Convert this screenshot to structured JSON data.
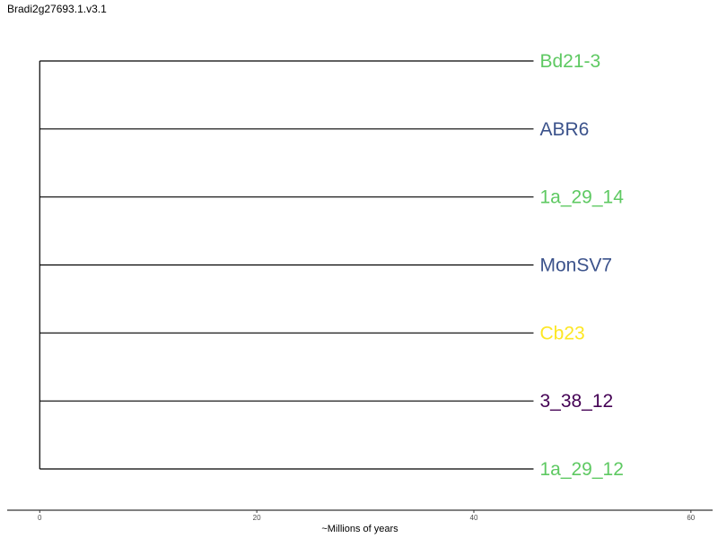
{
  "page": {
    "title": "Bradi2g27693.1.v3.1"
  },
  "chart_data": {
    "type": "dendrogram",
    "title": "Bradi2g27693.1.v3.1",
    "xlabel": "~Millions of years",
    "ylabel": "",
    "xlim": [
      -3,
      62
    ],
    "x_ticks": [
      0,
      20,
      40,
      60
    ],
    "grid": false,
    "root_age": 0,
    "tip_age": 45.5,
    "leaves": [
      {
        "label": "Bd21-3",
        "color": "#5ec962"
      },
      {
        "label": "ABR6",
        "color": "#3b528b"
      },
      {
        "label": "1a_29_14",
        "color": "#5ec962"
      },
      {
        "label": "MonSV7",
        "color": "#3b528b"
      },
      {
        "label": "Cb23",
        "color": "#fde725"
      },
      {
        "label": "3_38_12",
        "color": "#440154"
      },
      {
        "label": "1a_29_12",
        "color": "#5ec962"
      }
    ]
  }
}
